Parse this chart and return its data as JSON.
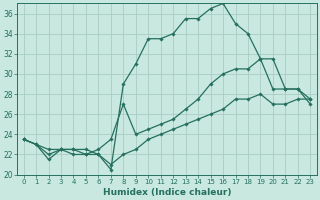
{
  "xlabel": "Humidex (Indice chaleur)",
  "bg_color": "#c8e8e0",
  "grid_color": "#a8ccc4",
  "line_color": "#267060",
  "xlim": [
    -0.5,
    23.5
  ],
  "ylim": [
    20,
    37
  ],
  "xticks": [
    0,
    1,
    2,
    3,
    4,
    5,
    6,
    7,
    8,
    9,
    10,
    11,
    12,
    13,
    14,
    15,
    16,
    17,
    18,
    19,
    20,
    21,
    22,
    23
  ],
  "yticks": [
    20,
    22,
    24,
    26,
    28,
    30,
    32,
    34,
    36
  ],
  "series1_x": [
    0,
    1,
    2,
    3,
    4,
    5,
    6,
    7,
    8,
    9,
    10,
    11,
    12,
    13,
    14,
    15,
    16,
    17,
    18,
    19,
    20,
    21,
    22,
    23
  ],
  "series1_y": [
    23.5,
    23.0,
    21.5,
    22.5,
    22.5,
    22.0,
    22.0,
    20.5,
    29.0,
    31.0,
    33.5,
    33.5,
    34.0,
    35.5,
    35.5,
    36.5,
    37.0,
    35.0,
    34.0,
    31.5,
    28.5,
    28.5,
    28.5,
    27.5
  ],
  "series2_x": [
    0,
    2,
    3,
    4,
    5,
    6,
    7,
    8,
    9,
    10,
    11,
    12,
    13,
    14,
    15,
    16,
    17,
    18,
    19,
    20,
    21,
    22,
    23
  ],
  "series2_y": [
    23.5,
    22.5,
    22.5,
    22.0,
    22.0,
    22.5,
    23.5,
    27.0,
    24.0,
    24.5,
    25.0,
    25.5,
    26.5,
    27.5,
    29.0,
    30.0,
    30.5,
    30.5,
    31.5,
    31.5,
    28.5,
    28.5,
    27.0
  ],
  "series3_x": [
    0,
    1,
    2,
    3,
    4,
    5,
    6,
    7,
    8,
    9,
    10,
    11,
    12,
    13,
    14,
    15,
    16,
    17,
    18,
    19,
    20,
    21,
    22,
    23
  ],
  "series3_y": [
    23.5,
    23.0,
    22.0,
    22.5,
    22.5,
    22.5,
    22.0,
    21.0,
    22.0,
    22.5,
    23.5,
    24.0,
    24.5,
    25.0,
    25.5,
    26.0,
    26.5,
    27.5,
    27.5,
    28.0,
    27.0,
    27.0,
    27.5,
    27.5
  ]
}
